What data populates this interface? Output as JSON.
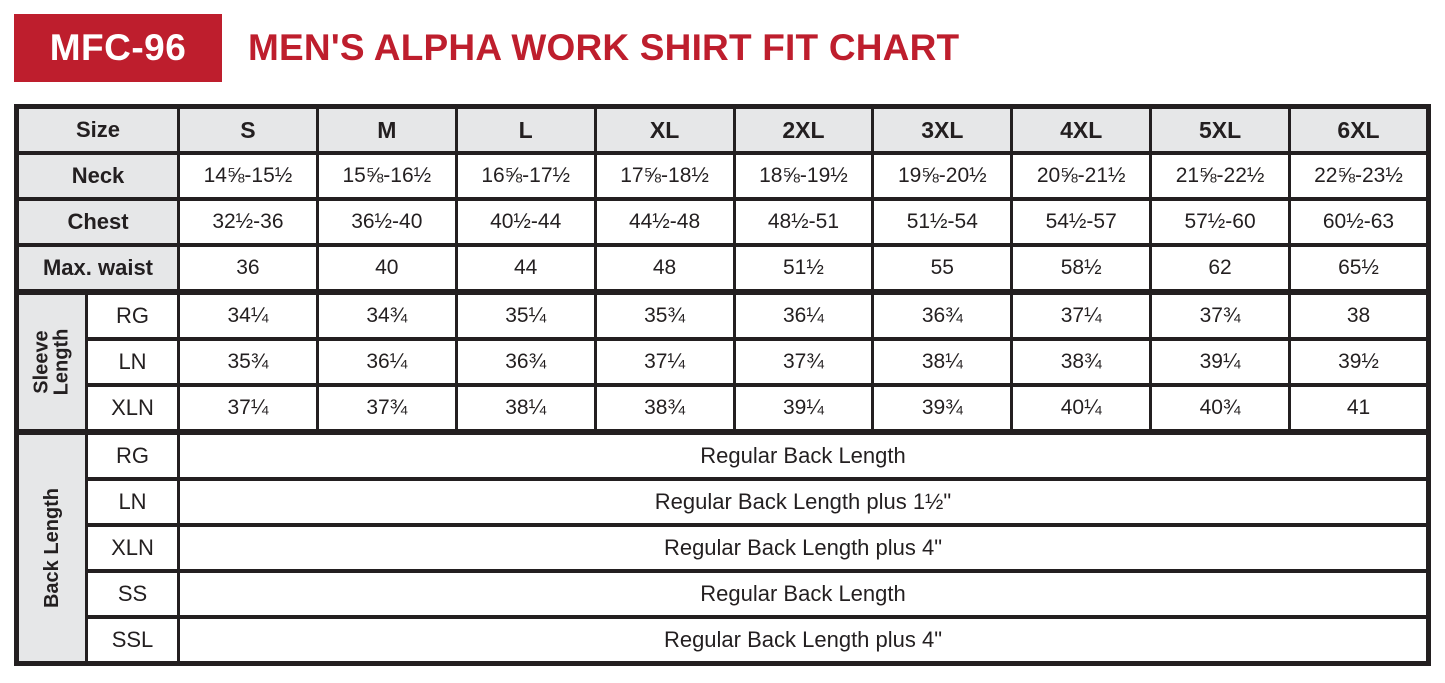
{
  "header": {
    "badge": "MFC-96",
    "title": "MEN'S ALPHA WORK SHIRT FIT CHART",
    "accent_color": "#BE1E2D"
  },
  "table": {
    "size_label": "Size",
    "sizes": [
      "S",
      "M",
      "L",
      "XL",
      "2XL",
      "3XL",
      "4XL",
      "5XL",
      "6XL"
    ],
    "neck": {
      "label": "Neck",
      "values": [
        "14⅝-15½",
        "15⅝-16½",
        "16⅝-17½",
        "17⅝-18½",
        "18⅝-19½",
        "19⅝-20½",
        "20⅝-21½",
        "21⅝-22½",
        "22⅝-23½"
      ]
    },
    "chest": {
      "label": "Chest",
      "values": [
        "32½-36",
        "36½-40",
        "40½-44",
        "44½-48",
        "48½-51",
        "51½-54",
        "54½-57",
        "57½-60",
        "60½-63"
      ]
    },
    "max_waist": {
      "label": "Max. waist",
      "values": [
        "36",
        "40",
        "44",
        "48",
        "51½",
        "55",
        "58½",
        "62",
        "65½"
      ]
    },
    "sleeve": {
      "group_label": "Sleeve Length",
      "rg": {
        "label": "RG",
        "values": [
          "34¼",
          "34¾",
          "35¼",
          "35¾",
          "36¼",
          "36¾",
          "37¼",
          "37¾",
          "38"
        ]
      },
      "ln": {
        "label": "LN",
        "values": [
          "35¾",
          "36¼",
          "36¾",
          "37¼",
          "37¾",
          "38¼",
          "38¾",
          "39¼",
          "39½"
        ]
      },
      "xln": {
        "label": "XLN",
        "values": [
          "37¼",
          "37¾",
          "38¼",
          "38¾",
          "39¼",
          "39¾",
          "40¼",
          "40¾",
          "41"
        ]
      }
    },
    "back": {
      "group_label": "Back Length",
      "rg": {
        "label": "RG",
        "value": "Regular Back Length"
      },
      "ln": {
        "label": "LN",
        "value": "Regular Back Length plus 1½\""
      },
      "xln": {
        "label": "XLN",
        "value": "Regular Back Length plus 4\""
      },
      "ss": {
        "label": "SS",
        "value": "Regular Back Length"
      },
      "ssl": {
        "label": "SSL",
        "value": "Regular Back Length plus 4\""
      }
    }
  }
}
